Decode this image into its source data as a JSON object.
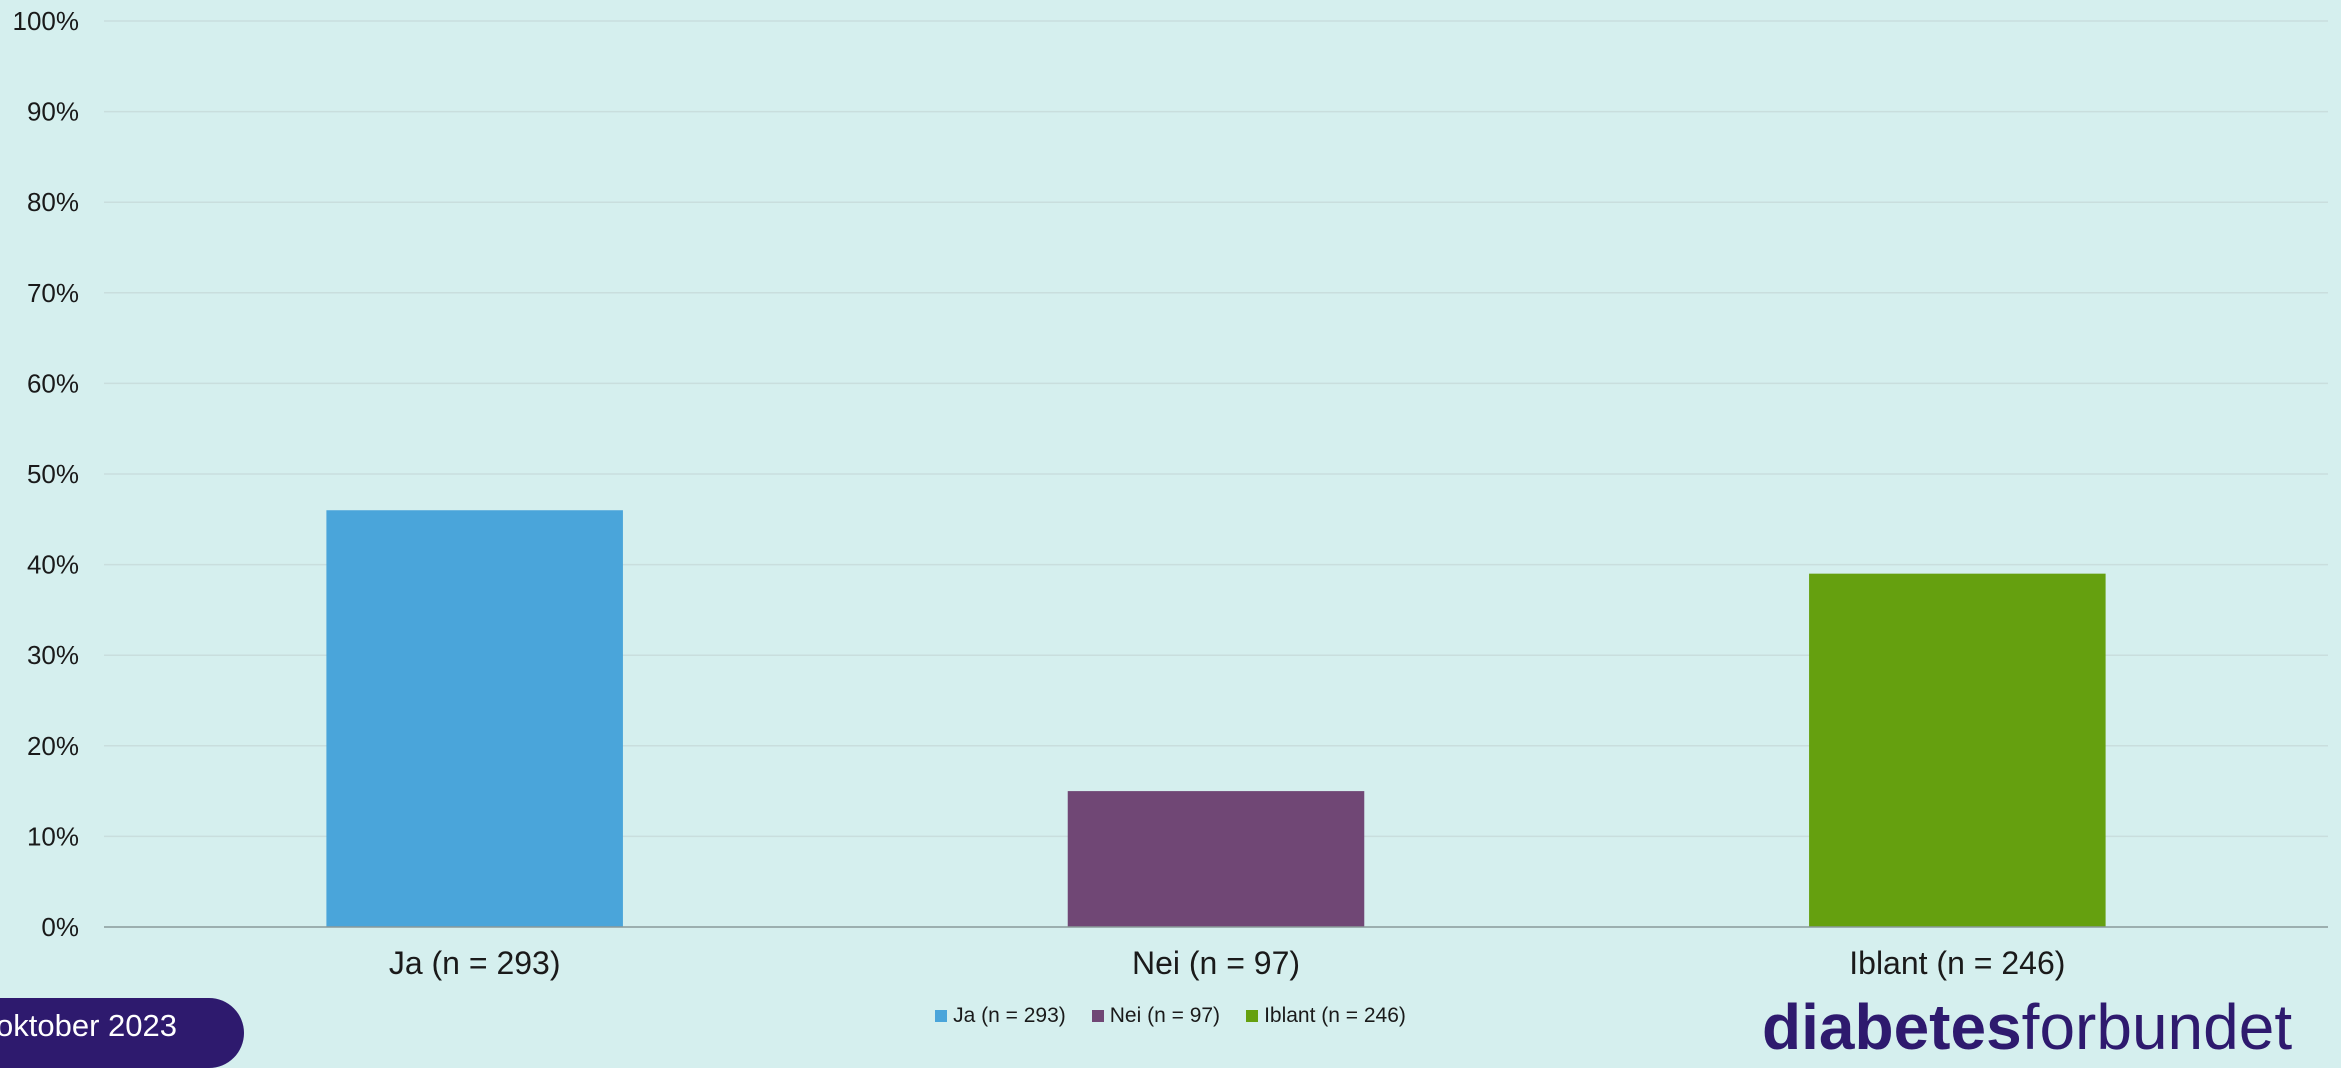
{
  "chart_data": {
    "type": "bar",
    "categories": [
      "Ja (n = 293)",
      "Nei (n = 97)",
      "Iblant (n = 246)"
    ],
    "values": [
      46,
      15,
      39
    ],
    "colors": [
      "#4aa5da",
      "#704775",
      "#65a00f"
    ],
    "ylim": [
      0,
      100
    ],
    "yticks": [
      "0%",
      "10%",
      "20%",
      "30%",
      "40%",
      "50%",
      "60%",
      "70%",
      "80%",
      "90%",
      "100%"
    ],
    "grid": true,
    "legend_position": "bottom",
    "legend": [
      "Ja (n = 293)",
      "Nei (n = 97)",
      "Iblant (n = 246)"
    ]
  },
  "footer": {
    "date_label": "oktober 2023",
    "logo_bold": "diabetes",
    "logo_light": "forbundet"
  }
}
